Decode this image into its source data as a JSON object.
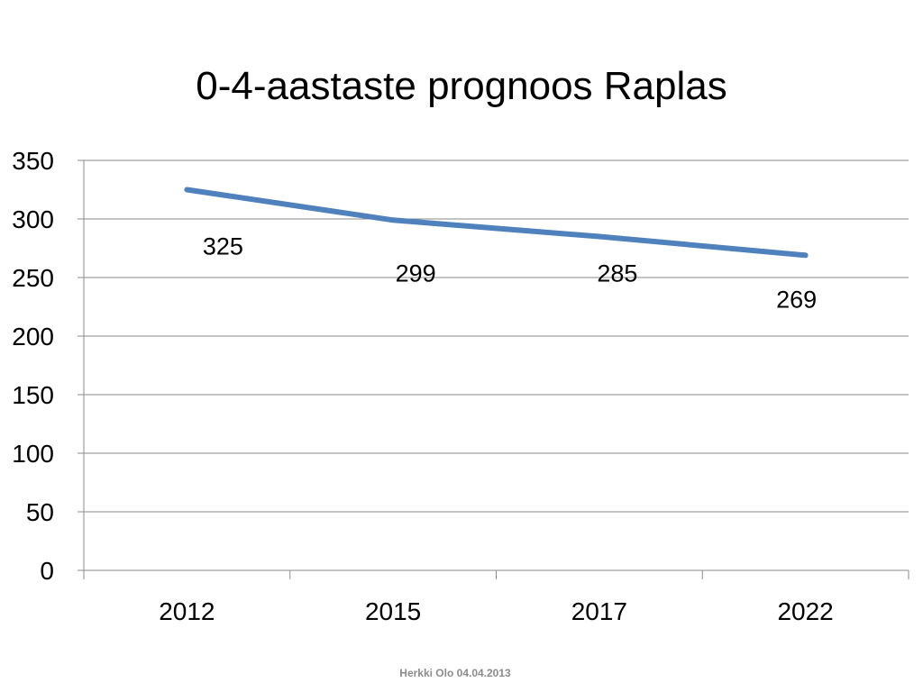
{
  "chart_data": {
    "type": "line",
    "title": "0-4-aastaste prognoos Raplas",
    "xlabel": "",
    "ylabel": "",
    "categories": [
      "2012",
      "2015",
      "2017",
      "2022"
    ],
    "series": [
      {
        "values": [
          325,
          299,
          285,
          269
        ],
        "color": "#4f81bd"
      }
    ],
    "data_labels": [
      "325",
      "299",
      "285",
      "269"
    ],
    "ylim": [
      0,
      350
    ],
    "yticks": [
      0,
      50,
      100,
      150,
      200,
      250,
      300,
      350
    ],
    "ytick_labels": [
      "0",
      "50",
      "100",
      "150",
      "200",
      "250",
      "300",
      "350"
    ],
    "grid": true,
    "legend": "none"
  },
  "footer": {
    "text": "Herkki Olo 04.04.2013"
  }
}
